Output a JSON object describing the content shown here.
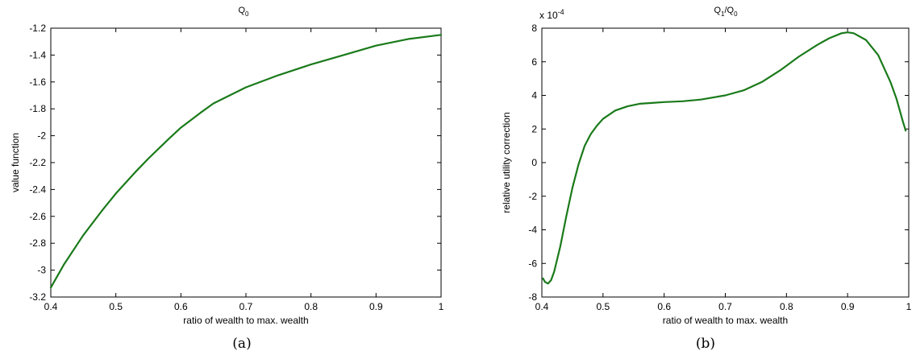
{
  "chart_data": [
    {
      "type": "line",
      "title": "Q",
      "title_sub": "0",
      "xlabel": "ratio of wealth to max. wealth",
      "ylabel": "value function",
      "caption": "(a)",
      "xlim": [
        0.4,
        1.0
      ],
      "ylim": [
        -3.2,
        -1.2
      ],
      "xticks": [
        0.4,
        0.5,
        0.6,
        0.7,
        0.8,
        0.9,
        1.0
      ],
      "xtick_labels": [
        "0.4",
        "0.5",
        "0.6",
        "0.7",
        "0.8",
        "0.9",
        "1"
      ],
      "yticks": [
        -3.2,
        -3.0,
        -2.8,
        -2.6,
        -2.4,
        -2.2,
        -2.0,
        -1.8,
        -1.6,
        -1.4,
        -1.2
      ],
      "ytick_labels": [
        "-3.2",
        "-3",
        "-2.8",
        "-2.6",
        "-2.4",
        "-2.2",
        "-2",
        "-1.8",
        "-1.6",
        "-1.4",
        "-1.2"
      ],
      "grid": false,
      "color": "#1a7a1a",
      "series": [
        {
          "x": [
            0.4,
            0.42,
            0.45,
            0.48,
            0.5,
            0.53,
            0.55,
            0.58,
            0.6,
            0.63,
            0.65,
            0.7,
            0.75,
            0.8,
            0.85,
            0.9,
            0.95,
            1.0
          ],
          "y": [
            -3.13,
            -2.96,
            -2.74,
            -2.55,
            -2.43,
            -2.27,
            -2.17,
            -2.03,
            -1.94,
            -1.83,
            -1.76,
            -1.64,
            -1.55,
            -1.47,
            -1.4,
            -1.33,
            -1.28,
            -1.25
          ]
        }
      ]
    },
    {
      "type": "line",
      "title": "Q",
      "title_sub1": "1",
      "title_mid": "/Q",
      "title_sub2": "0",
      "xlabel": "ratio of wealth to max. wealth",
      "ylabel": "relative utility correction",
      "caption": "(b)",
      "scale_label": "x 10",
      "scale_exp": "-4",
      "xlim": [
        0.4,
        1.0
      ],
      "ylim": [
        -8,
        8
      ],
      "xticks": [
        0.4,
        0.5,
        0.6,
        0.7,
        0.8,
        0.9,
        1.0
      ],
      "xtick_labels": [
        "0.4",
        "0.5",
        "0.6",
        "0.7",
        "0.8",
        "0.9",
        "1"
      ],
      "yticks": [
        -8,
        -6,
        -4,
        -2,
        0,
        2,
        4,
        6,
        8
      ],
      "ytick_labels": [
        "-8",
        "-6",
        "-4",
        "-2",
        "0",
        "2",
        "4",
        "6",
        "8"
      ],
      "grid": false,
      "color": "#1a7a1a",
      "series": [
        {
          "x": [
            0.402,
            0.405,
            0.41,
            0.415,
            0.42,
            0.43,
            0.44,
            0.45,
            0.46,
            0.47,
            0.48,
            0.49,
            0.5,
            0.52,
            0.54,
            0.56,
            0.58,
            0.6,
            0.63,
            0.66,
            0.7,
            0.73,
            0.76,
            0.79,
            0.82,
            0.85,
            0.87,
            0.89,
            0.9,
            0.91,
            0.93,
            0.95,
            0.97,
            0.98,
            0.99,
            0.995
          ],
          "y": [
            -6.9,
            -7.1,
            -7.2,
            -7.0,
            -6.5,
            -5.0,
            -3.2,
            -1.5,
            -0.1,
            1.0,
            1.7,
            2.2,
            2.6,
            3.1,
            3.35,
            3.5,
            3.55,
            3.6,
            3.65,
            3.75,
            4.0,
            4.3,
            4.8,
            5.5,
            6.3,
            7.0,
            7.4,
            7.7,
            7.75,
            7.7,
            7.3,
            6.4,
            4.8,
            3.8,
            2.5,
            1.9
          ]
        }
      ]
    }
  ]
}
